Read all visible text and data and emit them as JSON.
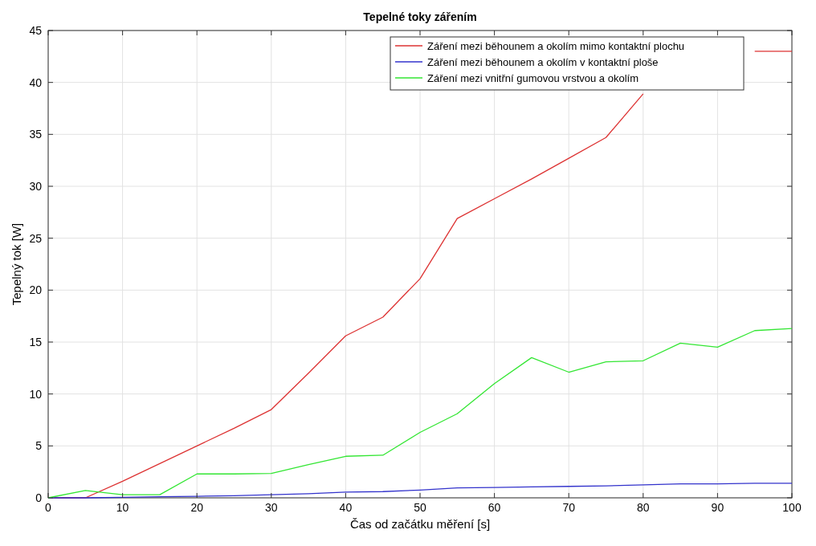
{
  "chart_data": {
    "type": "line",
    "title": "Tepelné toky zářením",
    "xlabel": "Čas od začátku měření [s]",
    "ylabel": "Tepelný tok [W]",
    "x": [
      0,
      5,
      10,
      15,
      20,
      25,
      30,
      35,
      40,
      45,
      50,
      55,
      60,
      65,
      70,
      75,
      80,
      85,
      90,
      95,
      100
    ],
    "series": [
      {
        "name": "Záření mezi běhounem a okolím mimo kontaktní plochu",
        "color": "#dd3333",
        "values": [
          0,
          0,
          1.6,
          3.3,
          5.0,
          6.7,
          8.5,
          12.0,
          15.6,
          17.4,
          21.1,
          26.9,
          28.8,
          30.7,
          32.7,
          34.7,
          38.9,
          null,
          null,
          43,
          43
        ]
      },
      {
        "name": "Záření mezi běhounem a okolím v kontaktní ploše",
        "color": "#3333cc",
        "values": [
          0,
          0,
          0.05,
          0.1,
          0.15,
          0.2,
          0.3,
          0.4,
          0.55,
          0.6,
          0.75,
          0.95,
          1.0,
          1.05,
          1.1,
          1.15,
          1.25,
          1.35,
          1.35,
          1.4,
          1.4
        ]
      },
      {
        "name": "Záření mezi vnitřní gumovou vrstvou a okolím",
        "color": "#33e633",
        "values": [
          0,
          0.7,
          0.3,
          0.3,
          2.3,
          2.3,
          2.35,
          3.2,
          4.0,
          4.1,
          6.3,
          8.1,
          11.0,
          13.5,
          12.1,
          13.1,
          13.2,
          14.9,
          14.5,
          16.1,
          16.3
        ]
      }
    ],
    "xlim": [
      0,
      100
    ],
    "xticks": [
      0,
      10,
      20,
      30,
      40,
      50,
      60,
      70,
      80,
      90,
      100
    ],
    "ylim": [
      0,
      45
    ],
    "yticks": [
      0,
      5,
      10,
      15,
      20,
      25,
      30,
      35,
      40,
      45
    ],
    "grid": true,
    "legend": "top right",
    "line_style": "solid",
    "marker": "none"
  }
}
